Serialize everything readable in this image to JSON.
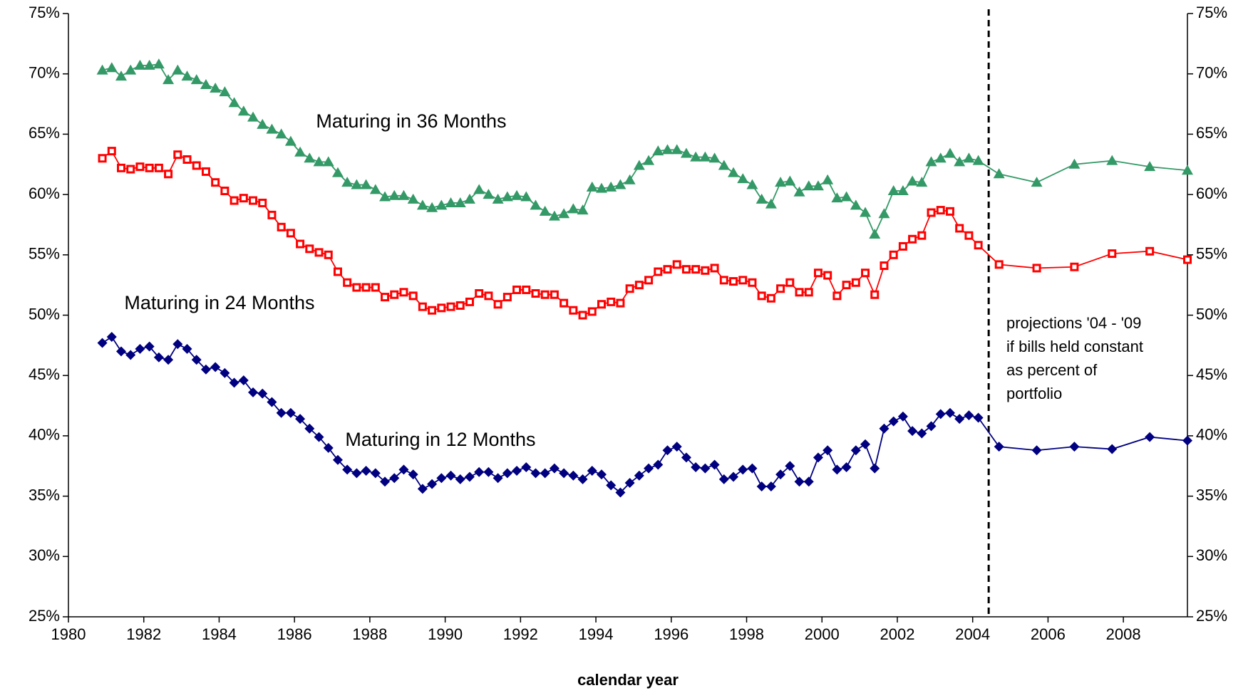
{
  "chart_data": {
    "type": "line",
    "x_label": "calendar year",
    "annotation": [
      "projections '04 - '09",
      "if bills held constant",
      "as percent of",
      "portfolio"
    ],
    "x": [
      1980.9,
      1981.15,
      1981.4,
      1981.65,
      1981.9,
      1982.15,
      1982.4,
      1982.65,
      1982.9,
      1983.15,
      1983.4,
      1983.65,
      1983.9,
      1984.15,
      1984.4,
      1984.65,
      1984.9,
      1985.15,
      1985.4,
      1985.65,
      1985.9,
      1986.15,
      1986.4,
      1986.65,
      1986.9,
      1987.15,
      1987.4,
      1987.65,
      1987.9,
      1988.15,
      1988.4,
      1988.65,
      1988.9,
      1989.15,
      1989.4,
      1989.65,
      1989.9,
      1990.15,
      1990.4,
      1990.65,
      1990.9,
      1991.15,
      1991.4,
      1991.65,
      1991.9,
      1992.15,
      1992.4,
      1992.65,
      1992.9,
      1993.15,
      1993.4,
      1993.65,
      1993.9,
      1994.15,
      1994.4,
      1994.65,
      1994.9,
      1995.15,
      1995.4,
      1995.65,
      1995.9,
      1996.15,
      1996.4,
      1996.65,
      1996.9,
      1997.15,
      1997.4,
      1997.65,
      1997.9,
      1998.15,
      1998.4,
      1998.65,
      1998.9,
      1999.15,
      1999.4,
      1999.65,
      1999.9,
      2000.15,
      2000.4,
      2000.65,
      2000.9,
      2001.15,
      2001.4,
      2001.65,
      2001.9,
      2002.15,
      2002.4,
      2002.65,
      2002.9,
      2003.15,
      2003.4,
      2003.65,
      2003.9,
      2004.15,
      2004.7,
      2005.7,
      2006.7,
      2007.7,
      2008.7,
      2009.7
    ],
    "series": [
      {
        "name": "Maturing in 36 Months",
        "color": "#339966",
        "marker": "triangle",
        "values": [
          70.3,
          70.5,
          69.8,
          70.3,
          70.7,
          70.7,
          70.8,
          69.5,
          70.3,
          69.8,
          69.5,
          69.1,
          68.8,
          68.5,
          67.6,
          66.9,
          66.4,
          65.8,
          65.4,
          65.0,
          64.4,
          63.5,
          63.0,
          62.7,
          62.7,
          61.8,
          61.0,
          60.8,
          60.8,
          60.4,
          59.8,
          59.9,
          59.9,
          59.6,
          59.1,
          58.9,
          59.1,
          59.3,
          59.3,
          59.6,
          60.4,
          60.0,
          59.6,
          59.8,
          59.9,
          59.8,
          59.1,
          58.6,
          58.2,
          58.4,
          58.8,
          58.7,
          60.6,
          60.5,
          60.6,
          60.8,
          61.2,
          62.4,
          62.8,
          63.6,
          63.7,
          63.7,
          63.4,
          63.1,
          63.1,
          63.0,
          62.4,
          61.8,
          61.3,
          60.8,
          59.6,
          59.2,
          61.0,
          61.1,
          60.2,
          60.7,
          60.7,
          61.2,
          59.7,
          59.8,
          59.1,
          58.5,
          56.7,
          58.4,
          60.3,
          60.3,
          61.1,
          61.0,
          62.7,
          63.0,
          63.4,
          62.7,
          63.0,
          62.8,
          61.7,
          61.0,
          62.5,
          62.8,
          62.3,
          62.0
        ]
      },
      {
        "name": "Maturing in 24 Months",
        "color": "#ff0000",
        "marker": "square",
        "values": [
          63.0,
          63.6,
          62.2,
          62.1,
          62.3,
          62.2,
          62.2,
          61.7,
          63.3,
          62.9,
          62.4,
          61.9,
          61.0,
          60.3,
          59.5,
          59.7,
          59.5,
          59.3,
          58.3,
          57.3,
          56.8,
          55.9,
          55.5,
          55.2,
          55.0,
          53.6,
          52.7,
          52.3,
          52.3,
          52.3,
          51.5,
          51.7,
          51.9,
          51.6,
          50.7,
          50.4,
          50.6,
          50.7,
          50.8,
          51.1,
          51.8,
          51.6,
          50.9,
          51.5,
          52.1,
          52.1,
          51.8,
          51.7,
          51.7,
          51.0,
          50.4,
          50.0,
          50.3,
          50.9,
          51.1,
          51.0,
          52.2,
          52.5,
          52.9,
          53.6,
          53.8,
          54.2,
          53.8,
          53.8,
          53.7,
          53.9,
          52.9,
          52.8,
          52.9,
          52.7,
          51.6,
          51.4,
          52.2,
          52.7,
          51.9,
          51.9,
          53.5,
          53.3,
          51.6,
          52.5,
          52.7,
          53.5,
          51.7,
          54.1,
          55.0,
          55.7,
          56.3,
          56.6,
          58.5,
          58.7,
          58.6,
          57.2,
          56.6,
          55.8,
          54.2,
          53.9,
          54.0,
          55.1,
          55.3,
          54.6
        ]
      },
      {
        "name": "Maturing in 12 Months",
        "color": "#000080",
        "marker": "diamond",
        "values": [
          47.7,
          48.2,
          47.0,
          46.7,
          47.2,
          47.4,
          46.5,
          46.3,
          47.6,
          47.2,
          46.3,
          45.5,
          45.7,
          45.2,
          44.4,
          44.6,
          43.6,
          43.5,
          42.8,
          41.9,
          41.9,
          41.4,
          40.6,
          39.9,
          39.0,
          38.0,
          37.2,
          36.9,
          37.1,
          36.9,
          36.2,
          36.5,
          37.2,
          36.8,
          35.6,
          36.0,
          36.5,
          36.7,
          36.4,
          36.6,
          37.0,
          37.0,
          36.5,
          36.9,
          37.1,
          37.4,
          36.9,
          36.9,
          37.3,
          36.9,
          36.7,
          36.4,
          37.1,
          36.8,
          35.9,
          35.3,
          36.1,
          36.7,
          37.3,
          37.6,
          38.8,
          39.1,
          38.2,
          37.4,
          37.3,
          37.6,
          36.4,
          36.6,
          37.2,
          37.3,
          35.8,
          35.8,
          36.8,
          37.5,
          36.2,
          36.2,
          38.2,
          38.8,
          37.2,
          37.4,
          38.8,
          39.3,
          37.3,
          40.6,
          41.2,
          41.6,
          40.4,
          40.2,
          40.8,
          41.8,
          41.9,
          41.4,
          41.7,
          41.5,
          39.1,
          38.8,
          39.1,
          38.9,
          39.9,
          39.6
        ]
      }
    ],
    "xlim": [
      1980,
      2009.7
    ],
    "xticks": [
      1980,
      1982,
      1984,
      1986,
      1988,
      1990,
      1992,
      1994,
      1996,
      1998,
      2000,
      2002,
      2004,
      2006,
      2008
    ],
    "ylim": [
      25,
      75
    ],
    "yticks": [
      {
        "value": 25,
        "label": "25%"
      },
      {
        "value": 30,
        "label": "30%"
      },
      {
        "value": 35,
        "label": "35%"
      },
      {
        "value": 40,
        "label": "40%"
      },
      {
        "value": 45,
        "label": "45%"
      },
      {
        "value": 50,
        "label": "50%"
      },
      {
        "value": 55,
        "label": "55%"
      },
      {
        "value": 60,
        "label": "60%"
      },
      {
        "value": 65,
        "label": "65%"
      },
      {
        "value": 70,
        "label": "70%"
      },
      {
        "value": 75,
        "label": "75%"
      }
    ],
    "y2lim": [
      25,
      75
    ],
    "y2ticks": [
      {
        "value": 25,
        "label": "25%"
      },
      {
        "value": 30,
        "label": "30%"
      },
      {
        "value": 35,
        "label": "35%"
      },
      {
        "value": 40,
        "label": "40%"
      },
      {
        "value": 45,
        "label": "45%"
      },
      {
        "value": 50,
        "label": "50%"
      },
      {
        "value": 55,
        "label": "55%"
      },
      {
        "value": 60,
        "label": "60%"
      },
      {
        "value": 65,
        "label": "65%"
      },
      {
        "value": 70,
        "label": "70%"
      },
      {
        "value": 75,
        "label": "75%"
      }
    ],
    "grid": false
  }
}
